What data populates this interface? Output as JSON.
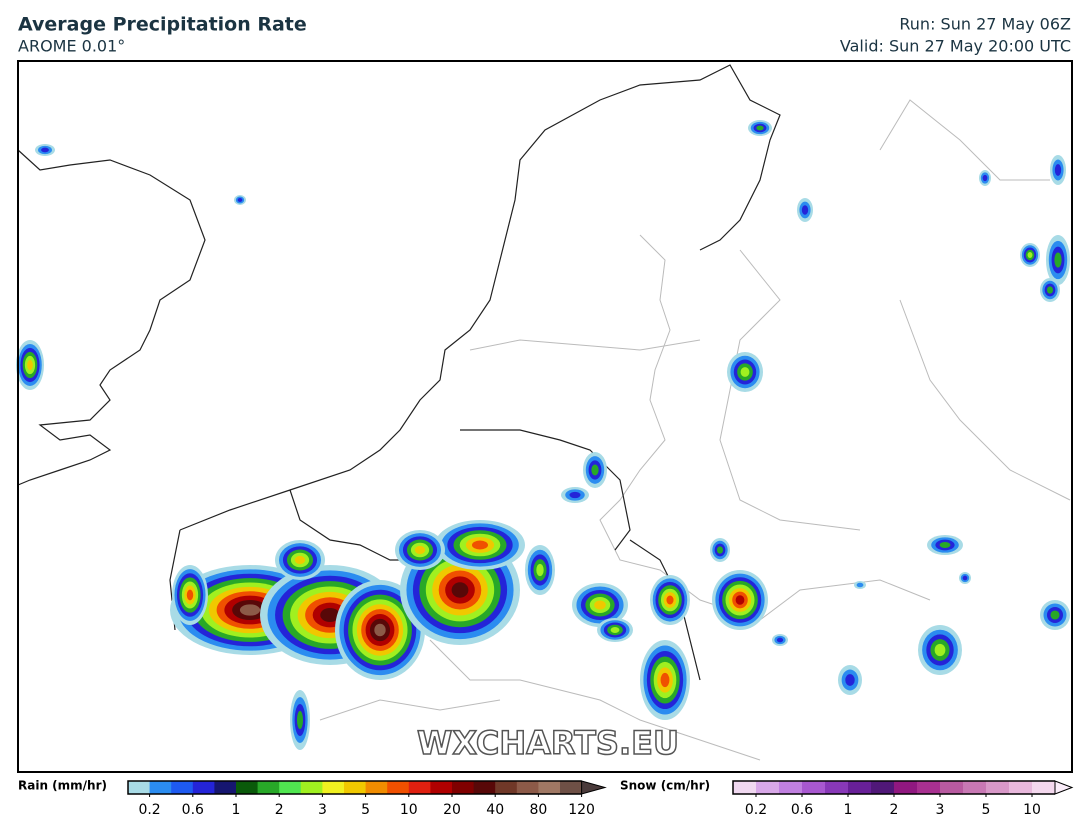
{
  "header": {
    "title": "Average Precipitation Rate",
    "model": "AROME 0.01°",
    "run": "Run: Sun 27 May 06Z",
    "valid": "Valid: Sun 27 May 20:00 UTC"
  },
  "watermark": "WXCHARTS.EU",
  "rain_legend": {
    "label": "Rain (mm/hr)",
    "ticks": [
      0.2,
      0.6,
      1,
      2,
      3,
      5,
      10,
      20,
      40,
      80,
      120
    ],
    "colors": [
      "#a8dbe6",
      "#2b8cf0",
      "#1e5af0",
      "#2424d8",
      "#161670",
      "#0a5a0a",
      "#28a828",
      "#50e650",
      "#a0f020",
      "#f0f020",
      "#f0c800",
      "#f08c00",
      "#f05000",
      "#e02010",
      "#b00000",
      "#800000",
      "#580808",
      "#703828",
      "#8c5a48",
      "#a07864",
      "#6e5046",
      "#4a3a3a"
    ]
  },
  "snow_legend": {
    "label": "Snow (cm/hr)",
    "ticks": [
      0.2,
      0.6,
      1,
      2,
      3,
      5,
      10
    ],
    "colors": [
      "#f0d8f0",
      "#d8a8e8",
      "#c080e0",
      "#a858d0",
      "#8838b8",
      "#682098",
      "#501878",
      "#901880",
      "#a83090",
      "#b85aa0",
      "#c878b4",
      "#d898c8",
      "#e8b8dc",
      "#f4d8ee",
      "#fbeefa"
    ]
  }
}
